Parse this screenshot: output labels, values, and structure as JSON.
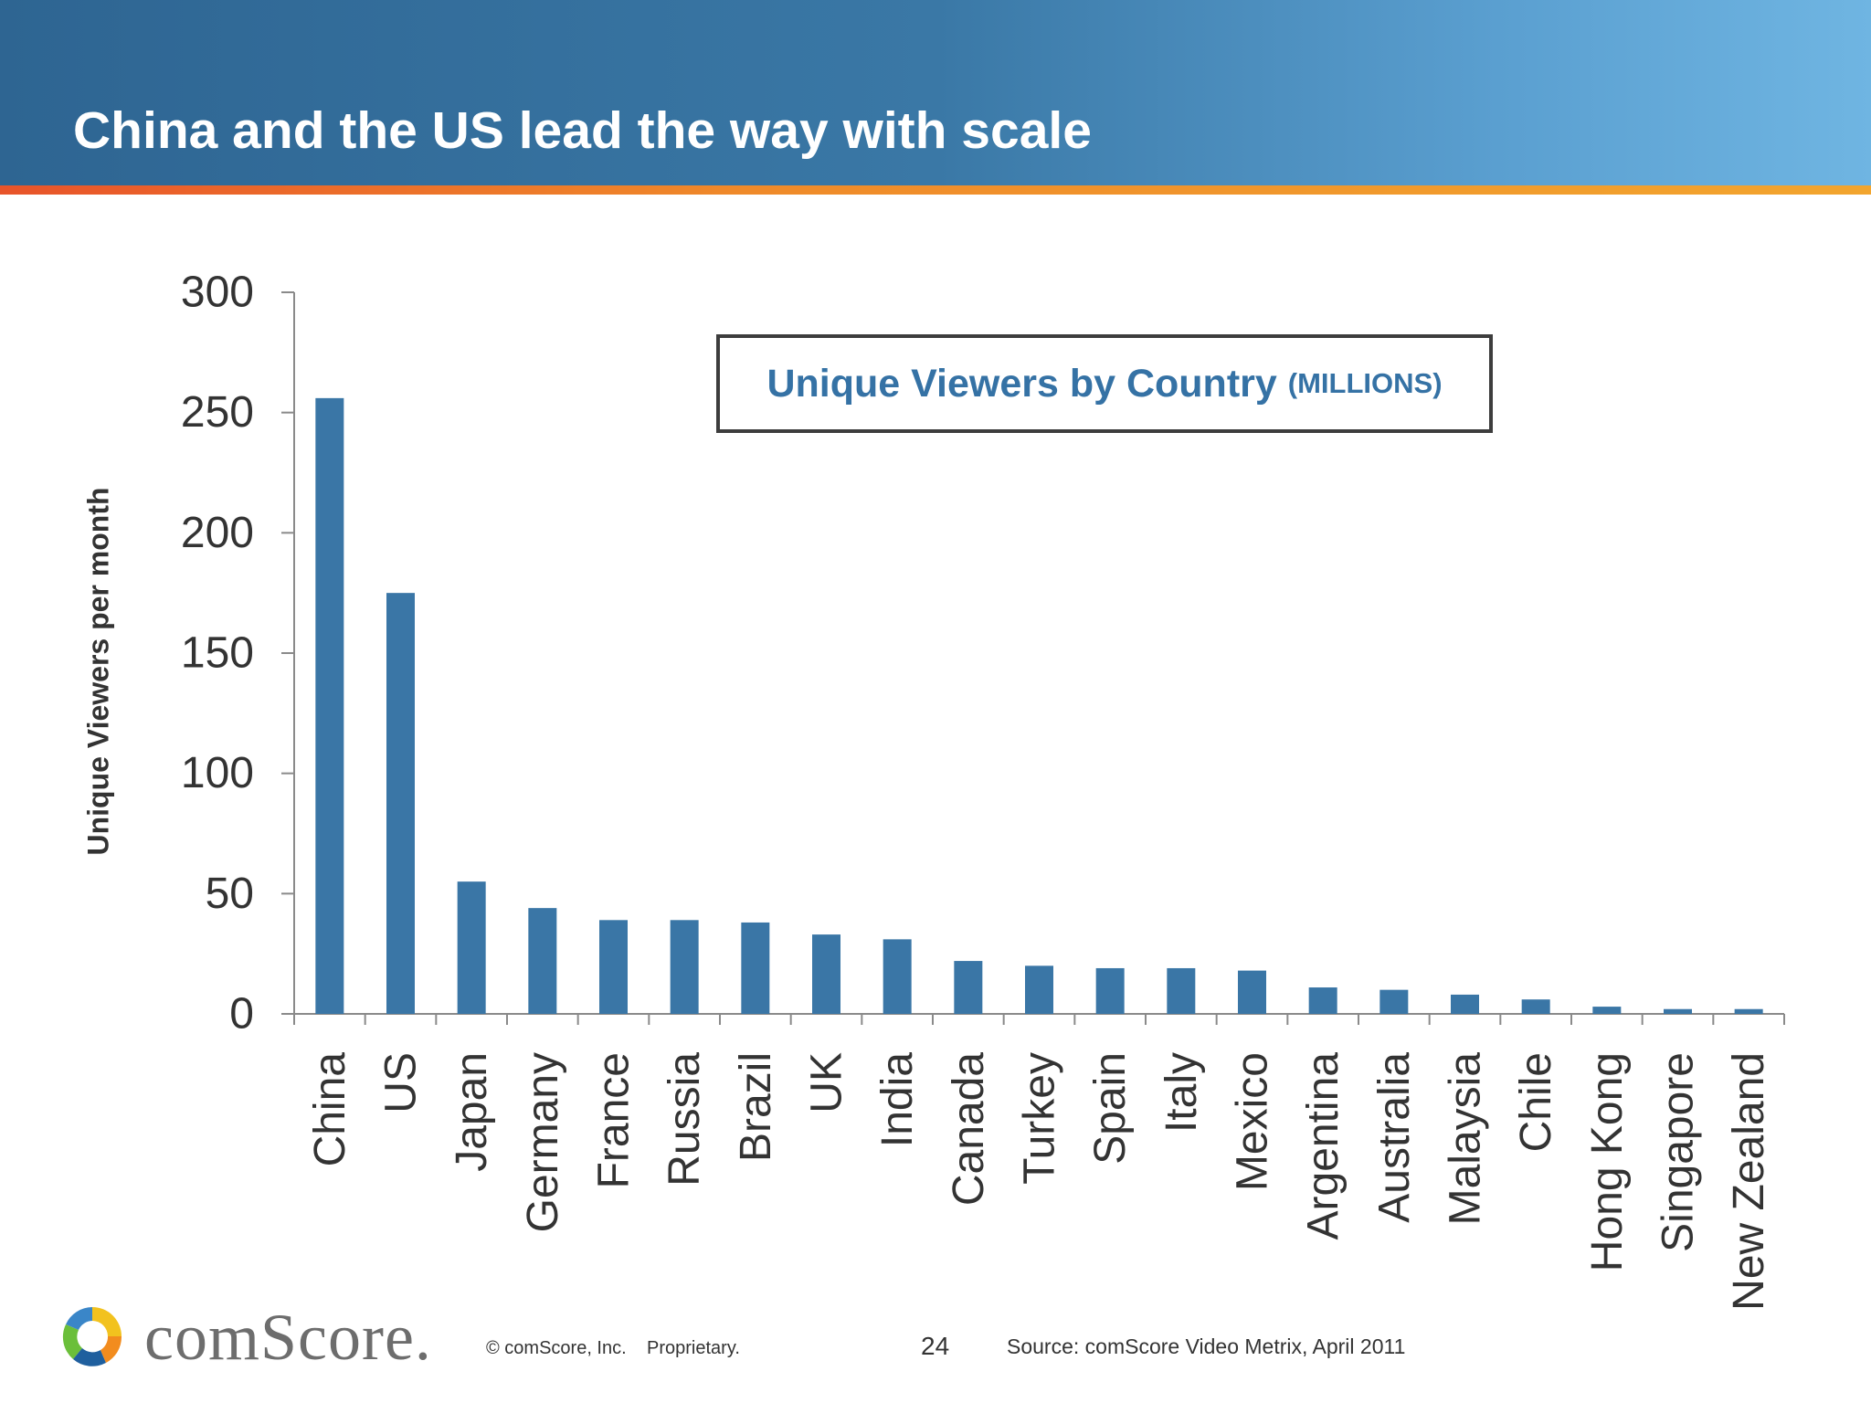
{
  "slide": {
    "title": "China and the US lead the way with scale",
    "legend_title": "Unique Viewers by Country",
    "legend_unit": "(MILLIONS)"
  },
  "colors": {
    "bar": "#3a76a6",
    "legend_text": "#3572a5",
    "axis": "#8a8a8a"
  },
  "chart_data": {
    "type": "bar",
    "categories": [
      "China",
      "US",
      "Japan",
      "Germany",
      "France",
      "Russia",
      "Brazil",
      "UK",
      "India",
      "Canada",
      "Turkey",
      "Spain",
      "Italy",
      "Mexico",
      "Argentina",
      "Australia",
      "Malaysia",
      "Chile",
      "Hong Kong",
      "Singapore",
      "New Zealand"
    ],
    "values": [
      256,
      175,
      55,
      44,
      39,
      39,
      38,
      33,
      31,
      22,
      20,
      19,
      19,
      18,
      11,
      10,
      8,
      6,
      3,
      2,
      2
    ],
    "ylabel": "Unique Viewers per month",
    "ylim": [
      0,
      300
    ],
    "yticks": [
      0,
      50,
      100,
      150,
      200,
      250,
      300
    ],
    "grid": false
  },
  "footer": {
    "brand": "comScore.",
    "copyright": "© comScore, Inc.",
    "proprietary": "Proprietary.",
    "page_number": "24",
    "source": "Source:  comScore Video Metrix, April 2011"
  }
}
